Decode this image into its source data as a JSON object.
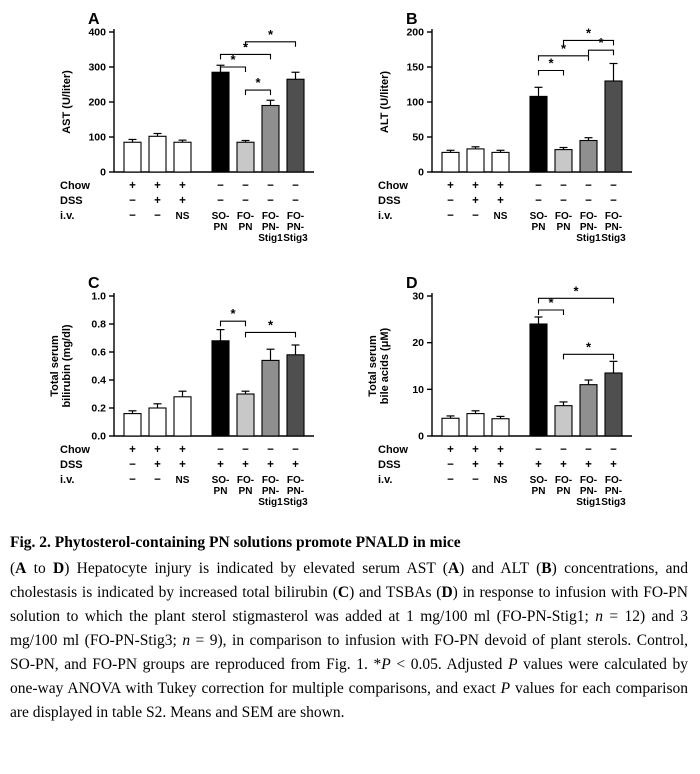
{
  "caption": {
    "title": "Fig. 2. Phytosterol-containing PN solutions promote PNALD in mice",
    "segments": [
      {
        "t": "(",
        "s": ""
      },
      {
        "t": "A",
        "s": "b"
      },
      {
        "t": " to ",
        "s": ""
      },
      {
        "t": "D",
        "s": "b"
      },
      {
        "t": ") Hepatocyte injury is indicated by elevated serum AST (",
        "s": ""
      },
      {
        "t": "A",
        "s": "b"
      },
      {
        "t": ") and ALT (",
        "s": ""
      },
      {
        "t": "B",
        "s": "b"
      },
      {
        "t": ") concentrations, and cholestasis is indicated by increased total bilirubin (",
        "s": ""
      },
      {
        "t": "C",
        "s": "b"
      },
      {
        "t": ") and TSBAs (",
        "s": ""
      },
      {
        "t": "D",
        "s": "b"
      },
      {
        "t": ") in response to infusion with FO-PN solution to which the plant sterol stigmasterol was added at 1 mg/100 ml (FO-PN-Stig1; ",
        "s": ""
      },
      {
        "t": "n",
        "s": "i"
      },
      {
        "t": " = 12) and 3 mg/100 ml (FO-PN-Stig3; ",
        "s": ""
      },
      {
        "t": "n",
        "s": "i"
      },
      {
        "t": " = 9), in comparison to infusion with FO-PN devoid of plant sterols. Control, SO-PN, and FO-PN groups are reproduced from Fig. 1. *",
        "s": ""
      },
      {
        "t": "P",
        "s": "i"
      },
      {
        "t": " < 0.05. Adjusted ",
        "s": ""
      },
      {
        "t": "P",
        "s": "i"
      },
      {
        "t": " values were calculated by one-way ANOVA with Tukey correction for multiple comparisons, and exact ",
        "s": ""
      },
      {
        "t": "P",
        "s": "i"
      },
      {
        "t": " values for each comparison are displayed in table S2. Means and SEM are shown.",
        "s": ""
      }
    ]
  },
  "chart_data": [
    {
      "type": "bar",
      "panel": "A",
      "ylabel": "AST (U/liter)",
      "ylabel_lines": [
        "AST (U/liter)"
      ],
      "ylim": [
        0,
        400
      ],
      "yticks": [
        0,
        100,
        200,
        300,
        400
      ],
      "ytick_labels": [
        "0",
        "100",
        "200",
        "300",
        "400"
      ],
      "categories": [
        "Chow",
        "Chow+DSS",
        "Chow+DSS+NS",
        "SO-PN",
        "FO-PN",
        "FO-PN-Stig1",
        "FO-PN-Stig3"
      ],
      "values": [
        85,
        102,
        85,
        285,
        85,
        190,
        265
      ],
      "errors": [
        8,
        8,
        6,
        20,
        5,
        15,
        20
      ],
      "bar_colors": [
        "#ffffff",
        "#ffffff",
        "#ffffff",
        "#000000",
        "#c8c8c8",
        "#8f8f8f",
        "#4f4f4f"
      ],
      "significance": [
        {
          "from": 3,
          "to": 4,
          "y": 300,
          "label": "*"
        },
        {
          "from": 4,
          "to": 5,
          "y": 234,
          "label": "*"
        },
        {
          "from": 3,
          "to": 5,
          "y": 336,
          "label": "*"
        },
        {
          "from": 4,
          "to": 6,
          "y": 372,
          "label": "*"
        }
      ],
      "table": {
        "row_labels": [
          "Chow",
          "DSS",
          "i.v."
        ],
        "rows": [
          [
            "+",
            "+",
            "+",
            "−",
            "−",
            "−",
            "−"
          ],
          [
            "−",
            "+",
            "+",
            "−",
            "−",
            "−",
            "−"
          ],
          [
            "−",
            "−",
            "NS",
            "SO-\nPN",
            "FO-\nPN",
            "FO-\nPN-\nStig1",
            "FO-\nPN-\nStig3"
          ]
        ]
      }
    },
    {
      "type": "bar",
      "panel": "B",
      "ylabel": "ALT (U/liter)",
      "ylabel_lines": [
        "ALT (U/liter)"
      ],
      "ylim": [
        0,
        200
      ],
      "yticks": [
        0,
        50,
        100,
        150,
        200
      ],
      "ytick_labels": [
        "0",
        "50",
        "100",
        "150",
        "200"
      ],
      "categories": [
        "Chow",
        "Chow+DSS",
        "Chow+DSS+NS",
        "SO-PN",
        "FO-PN",
        "FO-PN-Stig1",
        "FO-PN-Stig3"
      ],
      "values": [
        28,
        33,
        28,
        108,
        32,
        45,
        130
      ],
      "errors": [
        3,
        3,
        3,
        13,
        3,
        4,
        25
      ],
      "bar_colors": [
        "#ffffff",
        "#ffffff",
        "#ffffff",
        "#000000",
        "#c8c8c8",
        "#8f8f8f",
        "#4f4f4f"
      ],
      "significance": [
        {
          "from": 3,
          "to": 4,
          "y": 145,
          "label": "*"
        },
        {
          "from": 3,
          "to": 5,
          "y": 166,
          "label": "*"
        },
        {
          "from": 5,
          "to": 6,
          "y": 174,
          "label": "*"
        },
        {
          "from": 4,
          "to": 6,
          "y": 188,
          "label": "*"
        }
      ],
      "table": {
        "row_labels": [
          "Chow",
          "DSS",
          "i.v."
        ],
        "rows": [
          [
            "+",
            "+",
            "+",
            "−",
            "−",
            "−",
            "−"
          ],
          [
            "−",
            "+",
            "+",
            "−",
            "−",
            "−",
            "−"
          ],
          [
            "−",
            "−",
            "NS",
            "SO-\nPN",
            "FO-\nPN",
            "FO-\nPN-\nStig1",
            "FO-\nPN-\nStig3"
          ]
        ]
      }
    },
    {
      "type": "bar",
      "panel": "C",
      "ylabel": "Total serum bilirubin (mg/dl)",
      "ylabel_lines": [
        "Total serum",
        "bilirubin (mg/dl)"
      ],
      "ylim": [
        0,
        1.0
      ],
      "yticks": [
        0,
        0.2,
        0.4,
        0.6,
        0.8,
        1.0
      ],
      "ytick_labels": [
        "0.0",
        "0.2",
        "0.4",
        "0.6",
        "0.8",
        "1.0"
      ],
      "categories": [
        "Chow",
        "Chow+DSS",
        "Chow+DSS+NS",
        "SO-PN",
        "FO-PN",
        "FO-PN-Stig1",
        "FO-PN-Stig3"
      ],
      "values": [
        0.16,
        0.2,
        0.28,
        0.68,
        0.3,
        0.54,
        0.58
      ],
      "errors": [
        0.02,
        0.03,
        0.04,
        0.08,
        0.02,
        0.08,
        0.07
      ],
      "bar_colors": [
        "#ffffff",
        "#ffffff",
        "#ffffff",
        "#000000",
        "#c8c8c8",
        "#8f8f8f",
        "#4f4f4f"
      ],
      "significance": [
        {
          "from": 3,
          "to": 4,
          "y": 0.82,
          "label": "*"
        },
        {
          "from": 4,
          "to": 6,
          "y": 0.74,
          "label": "*"
        }
      ],
      "table": {
        "row_labels": [
          "Chow",
          "DSS",
          "i.v."
        ],
        "rows": [
          [
            "+",
            "+",
            "+",
            "−",
            "−",
            "−",
            "−"
          ],
          [
            "−",
            "+",
            "+",
            "+",
            "+",
            "+",
            "+"
          ],
          [
            "−",
            "−",
            "NS",
            "SO-\nPN",
            "FO-\nPN",
            "FO-\nPN-\nStig1",
            "FO-\nPN-\nStig3"
          ]
        ]
      }
    },
    {
      "type": "bar",
      "panel": "D",
      "ylabel": "Total serum bile acids (μM)",
      "ylabel_lines": [
        "Total serum",
        "bile acids (μM)"
      ],
      "ylim": [
        0,
        30
      ],
      "yticks": [
        0,
        10,
        20,
        30
      ],
      "ytick_labels": [
        "0",
        "10",
        "20",
        "30"
      ],
      "categories": [
        "Chow",
        "Chow+DSS",
        "Chow+DSS+NS",
        "SO-PN",
        "FO-PN",
        "FO-PN-Stig1",
        "FO-PN-Stig3"
      ],
      "values": [
        3.8,
        4.8,
        3.7,
        24,
        6.5,
        11,
        13.5
      ],
      "errors": [
        0.5,
        0.6,
        0.5,
        1.5,
        0.8,
        1.0,
        2.5
      ],
      "bar_colors": [
        "#ffffff",
        "#ffffff",
        "#ffffff",
        "#000000",
        "#c8c8c8",
        "#8f8f8f",
        "#4f4f4f"
      ],
      "significance": [
        {
          "from": 3,
          "to": 4,
          "y": 27,
          "label": "*"
        },
        {
          "from": 3,
          "to": 6,
          "y": 29.5,
          "label": "*"
        },
        {
          "from": 4,
          "to": 6,
          "y": 17.5,
          "label": "*"
        }
      ],
      "table": {
        "row_labels": [
          "Chow",
          "DSS",
          "i.v."
        ],
        "rows": [
          [
            "+",
            "+",
            "+",
            "−",
            "−",
            "−",
            "−"
          ],
          [
            "−",
            "+",
            "+",
            "+",
            "+",
            "+",
            "+"
          ],
          [
            "−",
            "−",
            "NS",
            "SO-\nPN",
            "FO-\nPN",
            "FO-\nPN-\nStig1",
            "FO-\nPN-\nStig3"
          ]
        ]
      }
    }
  ]
}
